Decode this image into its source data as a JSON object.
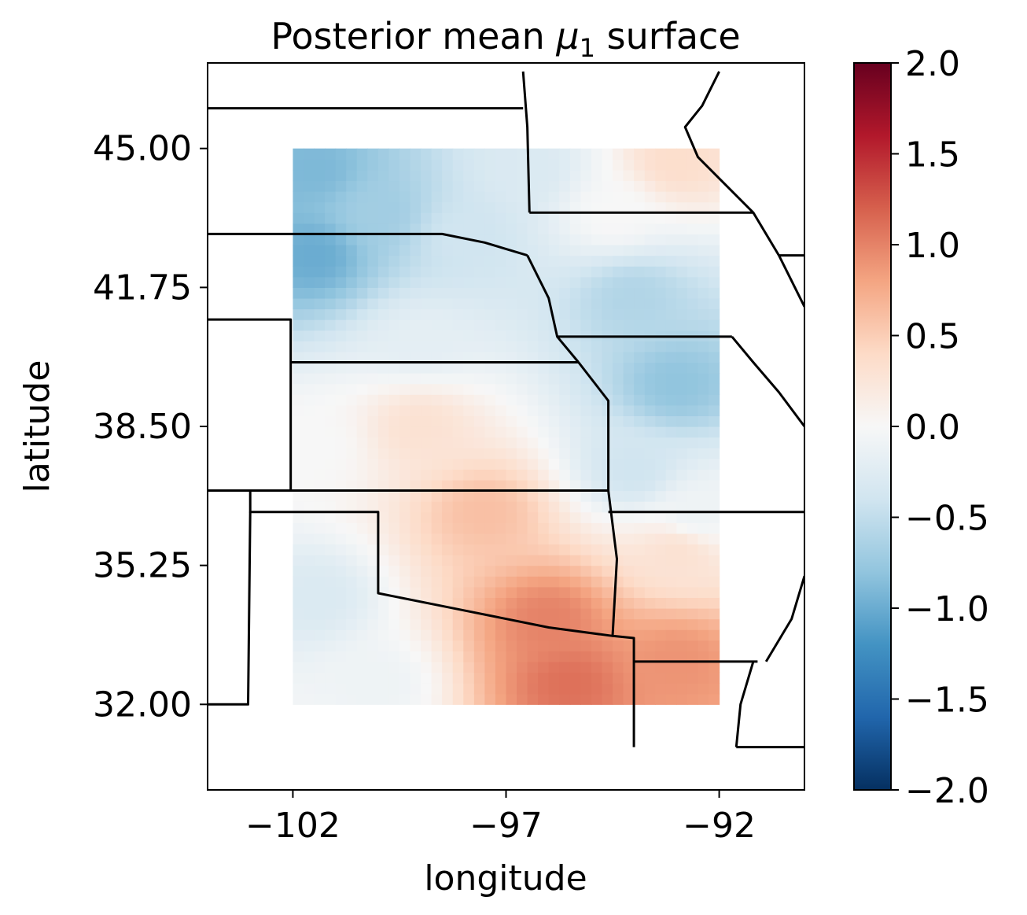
{
  "chart_data": {
    "type": "heatmap",
    "title_prefix": "Posterior mean ",
    "title_symbol": "μ",
    "title_subscript": "1",
    "title_suffix": " surface",
    "xlabel": "longitude",
    "ylabel": "latitude",
    "xlim": [
      -104,
      -90
    ],
    "ylim": [
      30,
      47
    ],
    "x_ticks": [
      -102,
      -97,
      -92
    ],
    "x_tick_labels": [
      "−102",
      "−97",
      "−92"
    ],
    "y_ticks": [
      45.0,
      41.75,
      38.5,
      35.25,
      32.0
    ],
    "y_tick_labels": [
      "45.00",
      "41.75",
      "38.50",
      "35.25",
      "32.00"
    ],
    "grid_extent": {
      "lon": [
        -102,
        -92
      ],
      "lat": [
        32,
        45
      ]
    },
    "grid_resolution_deg": 0.25,
    "colormap": "RdBu_r",
    "colorbar": {
      "vmin": -2.0,
      "vmax": 2.0,
      "ticks": [
        2.0,
        1.5,
        1.0,
        0.5,
        0.0,
        -0.5,
        -1.0,
        -1.5,
        -2.0
      ],
      "tick_labels": [
        "2.0",
        "1.5",
        "1.0",
        "0.5",
        "0.0",
        "−0.5",
        "−1.0",
        "−1.5",
        "−2.0"
      ]
    },
    "surface_control_points": [
      {
        "lon": -101.5,
        "lat": 44.5,
        "value": -0.9
      },
      {
        "lon": -101.5,
        "lat": 42.5,
        "value": -1.0
      },
      {
        "lon": -100.0,
        "lat": 43.5,
        "value": -0.7
      },
      {
        "lon": -98.0,
        "lat": 43.0,
        "value": -0.4
      },
      {
        "lon": -96.5,
        "lat": 44.5,
        "value": -0.3
      },
      {
        "lon": -93.0,
        "lat": 44.7,
        "value": 0.35
      },
      {
        "lon": -94.5,
        "lat": 43.5,
        "value": 0.0
      },
      {
        "lon": -94.0,
        "lat": 41.5,
        "value": -0.6
      },
      {
        "lon": -93.0,
        "lat": 39.5,
        "value": -0.8
      },
      {
        "lon": -94.0,
        "lat": 37.5,
        "value": -0.4
      },
      {
        "lon": -99.0,
        "lat": 40.5,
        "value": -0.2
      },
      {
        "lon": -99.0,
        "lat": 38.5,
        "value": 0.3
      },
      {
        "lon": -101.5,
        "lat": 38.0,
        "value": 0.0
      },
      {
        "lon": -101.5,
        "lat": 34.5,
        "value": -0.3
      },
      {
        "lon": -100.0,
        "lat": 32.5,
        "value": -0.1
      },
      {
        "lon": -97.5,
        "lat": 36.5,
        "value": 0.6
      },
      {
        "lon": -96.0,
        "lat": 34.0,
        "value": 1.0
      },
      {
        "lon": -95.5,
        "lat": 32.5,
        "value": 1.1
      },
      {
        "lon": -93.0,
        "lat": 33.0,
        "value": 0.9
      },
      {
        "lon": -93.0,
        "lat": 35.5,
        "value": 0.3
      },
      {
        "lon": -92.5,
        "lat": 36.5,
        "value": -0.1
      }
    ],
    "state_boundaries": [
      [
        [
          -104,
          45.94
        ],
        [
          -96.6,
          45.94
        ]
      ],
      [
        [
          -104,
          43.0
        ],
        [
          -98.5,
          43.0
        ],
        [
          -97.5,
          42.8
        ],
        [
          -96.5,
          42.5
        ]
      ],
      [
        [
          -104,
          41.0
        ],
        [
          -102.05,
          41.0
        ],
        [
          -102.05,
          37.0
        ]
      ],
      [
        [
          -102.05,
          40.0
        ],
        [
          -95.3,
          40.0
        ]
      ],
      [
        [
          -104,
          37.0
        ],
        [
          -94.6,
          37.0
        ]
      ],
      [
        [
          -103.0,
          37.0
        ],
        [
          -103.0,
          36.5
        ],
        [
          -100.0,
          36.5
        ],
        [
          -100.0,
          34.6
        ],
        [
          -98.0,
          34.2
        ],
        [
          -96.0,
          33.8
        ],
        [
          -94.5,
          33.6
        ]
      ],
      [
        [
          -103.0,
          36.5
        ],
        [
          -103.05,
          32.0
        ],
        [
          -104,
          32.0
        ]
      ],
      [
        [
          -94.6,
          37.0
        ],
        [
          -94.4,
          35.4
        ],
        [
          -94.5,
          33.6
        ],
        [
          -94.0,
          33.55
        ],
        [
          -94.0,
          31.0
        ]
      ],
      [
        [
          -94.0,
          33.0
        ],
        [
          -91.1,
          33.0
        ]
      ],
      [
        [
          -94.6,
          36.5
        ],
        [
          -89.9,
          36.5
        ]
      ],
      [
        [
          -96.6,
          46.8
        ],
        [
          -96.5,
          45.5
        ],
        [
          -96.45,
          43.5
        ]
      ],
      [
        [
          -96.45,
          43.5
        ],
        [
          -91.2,
          43.5
        ]
      ],
      [
        [
          -96.5,
          42.5
        ],
        [
          -96.0,
          41.5
        ],
        [
          -95.8,
          40.6
        ],
        [
          -95.3,
          40.0
        ]
      ],
      [
        [
          -95.8,
          40.6
        ],
        [
          -91.7,
          40.6
        ]
      ],
      [
        [
          -95.3,
          40.0
        ],
        [
          -94.6,
          39.1
        ],
        [
          -94.6,
          37.0
        ]
      ],
      [
        [
          -92.0,
          46.8
        ],
        [
          -92.4,
          46.0
        ],
        [
          -92.8,
          45.5
        ],
        [
          -92.5,
          44.8
        ],
        [
          -91.2,
          43.5
        ],
        [
          -90.6,
          42.5
        ],
        [
          -90.0,
          41.3
        ]
      ],
      [
        [
          -90.6,
          42.5
        ],
        [
          -90.0,
          42.5
        ]
      ],
      [
        [
          -91.7,
          40.6
        ],
        [
          -91.2,
          40.0
        ],
        [
          -90.6,
          39.3
        ],
        [
          -90.0,
          38.5
        ]
      ],
      [
        [
          -91.2,
          33.0
        ],
        [
          -91.5,
          32.0
        ],
        [
          -91.6,
          31.0
        ]
      ],
      [
        [
          -91.6,
          31.0
        ],
        [
          -90.0,
          31.0
        ]
      ],
      [
        [
          -90.0,
          35.0
        ],
        [
          -90.3,
          34.0
        ],
        [
          -90.9,
          33.0
        ]
      ]
    ]
  }
}
